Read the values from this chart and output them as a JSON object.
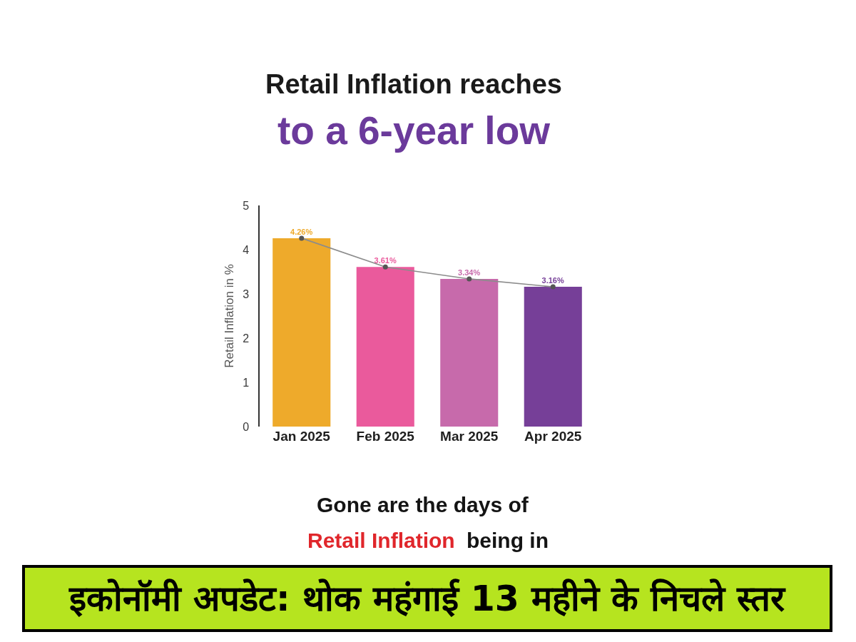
{
  "chart_data": {
    "type": "bar",
    "title": "Retail Inflation reaches",
    "subtitle": "to a 6-year low",
    "ylabel": "Retail Inflation in %",
    "categories": [
      "Jan 2025",
      "Feb 2025",
      "Mar 2025",
      "Apr 2025"
    ],
    "series": [
      {
        "colors": [
          "#eeaa2b",
          "#ea5a9c",
          "#c76aab",
          "#763f98"
        ],
        "values": [
          4.26,
          3.61,
          3.34,
          3.16
        ],
        "value_labels": [
          "4.26%",
          "3.61%",
          "3.34%",
          "3.16%"
        ]
      },
      {
        "type": "line",
        "color": "#8c8c8c",
        "values": [
          4.26,
          3.61,
          3.34,
          3.16
        ]
      }
    ],
    "marker": "circle",
    "ylim": [
      0,
      5
    ],
    "yticks": [
      0,
      1,
      2,
      3,
      4,
      5
    ],
    "annotations": [
      "Gone are the days of",
      "Retail Inflation",
      "being in",
      "इकोनॉमी अपडेट: थोक महंगाई 13 महीने के निचले स्तर"
    ]
  }
}
